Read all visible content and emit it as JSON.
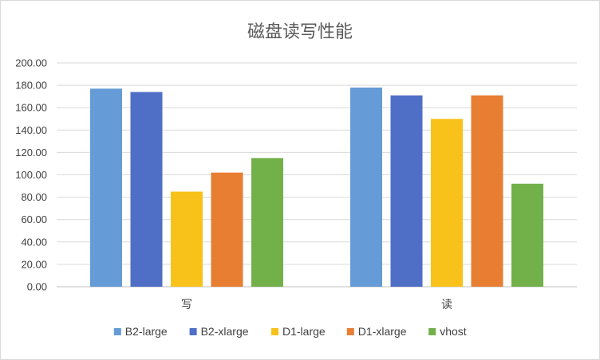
{
  "chart_data": {
    "type": "bar",
    "title": "磁盘读写性能",
    "xlabel": "",
    "ylabel": "",
    "categories": [
      "写",
      "读"
    ],
    "ylim": [
      0,
      200
    ],
    "yticks": [
      "0.00",
      "20.00",
      "40.00",
      "60.00",
      "80.00",
      "100.00",
      "120.00",
      "140.00",
      "160.00",
      "180.00",
      "200.00"
    ],
    "grid": true,
    "legend_position": "bottom",
    "series": [
      {
        "name": "B2-large",
        "color": "#659bd6",
        "values": [
          177,
          178
        ]
      },
      {
        "name": "B2-xlarge",
        "color": "#4f6fc7",
        "values": [
          174,
          171
        ]
      },
      {
        "name": "D1-large",
        "color": "#f8c21b",
        "values": [
          85,
          150
        ]
      },
      {
        "name": "D1-xlarge",
        "color": "#e87e32",
        "values": [
          102,
          171
        ]
      },
      {
        "name": "vhost",
        "color": "#72b04a",
        "values": [
          115,
          92
        ]
      }
    ]
  }
}
